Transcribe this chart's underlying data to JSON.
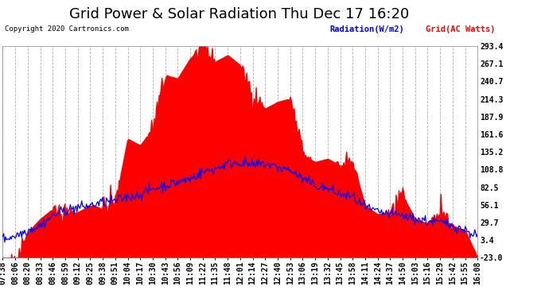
{
  "title": "Grid Power & Solar Radiation Thu Dec 17 16:20",
  "copyright": "Copyright 2020 Cartronics.com",
  "legend_radiation": "Radiation(W/m2)",
  "legend_grid": "Grid(AC Watts)",
  "ylabel_right_vals": [
    293.4,
    267.1,
    240.7,
    214.3,
    187.9,
    161.6,
    135.2,
    108.8,
    82.5,
    56.1,
    29.7,
    3.4,
    -23.0
  ],
  "ymin": -23.0,
  "ymax": 293.4,
  "background_color": "#ffffff",
  "plot_bg_color": "#ffffff",
  "grid_color": "#b0b0b0",
  "fill_color_red": "#ff0000",
  "line_color_blue": "#0000ff",
  "title_fontsize": 13,
  "tick_fontsize": 7,
  "x_labels": [
    "07:38",
    "08:06",
    "08:20",
    "08:33",
    "08:46",
    "08:59",
    "09:12",
    "09:25",
    "09:38",
    "09:51",
    "10:04",
    "10:17",
    "10:30",
    "10:43",
    "10:56",
    "11:09",
    "11:22",
    "11:35",
    "11:48",
    "12:01",
    "12:14",
    "12:27",
    "12:40",
    "12:53",
    "13:06",
    "13:19",
    "13:32",
    "13:45",
    "13:58",
    "14:11",
    "14:24",
    "14:37",
    "14:50",
    "15:03",
    "15:16",
    "15:29",
    "15:42",
    "15:55",
    "16:08"
  ]
}
